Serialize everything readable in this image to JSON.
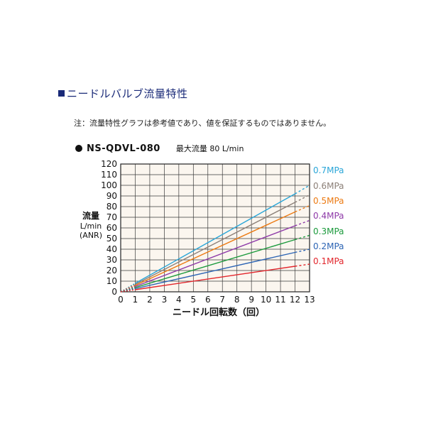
{
  "header": {
    "section_title": "ニードルバルブ流量特性",
    "note": "注：流量特性グラフは参考値であり、値を保証するものではありません。",
    "model": "NS-QDVL-080",
    "max_flow": "最大流量 80 L/min"
  },
  "chart_data": {
    "type": "line",
    "title": "",
    "xlabel": "ニードル回転数（回）",
    "ylabel_main": "流量",
    "ylabel_unit": "L/min",
    "ylabel_sub": "(ANR)",
    "xlim": [
      0,
      13
    ],
    "ylim": [
      0,
      120
    ],
    "x_ticks": [
      "0",
      "1",
      "2",
      "3",
      "4",
      "5",
      "6",
      "7",
      "8",
      "9",
      "10",
      "11",
      "12",
      "13"
    ],
    "y_ticks": [
      "0",
      "10",
      "20",
      "30",
      "40",
      "50",
      "60",
      "70",
      "80",
      "90",
      "100",
      "110",
      "120"
    ],
    "grid": true,
    "legend": "right",
    "series": [
      {
        "name": "0.7MPa",
        "color": "#2aa6d8",
        "x": [
          0,
          1,
          12
        ],
        "y": [
          0,
          8,
          92
        ],
        "ext_y": 100
      },
      {
        "name": "0.6MPa",
        "color": "#8c8078",
        "x": [
          0,
          1,
          12
        ],
        "y": [
          0,
          7,
          84
        ],
        "ext_y": 91
      },
      {
        "name": "0.5MPa",
        "color": "#ec7a12",
        "x": [
          0,
          1,
          12
        ],
        "y": [
          0,
          6,
          75
        ],
        "ext_y": 81
      },
      {
        "name": "0.4MPa",
        "color": "#8e3aa8",
        "x": [
          0,
          1,
          12
        ],
        "y": [
          0,
          5,
          62
        ],
        "ext_y": 67
      },
      {
        "name": "0.3MPa",
        "color": "#1b9a3c",
        "x": [
          0,
          1,
          12
        ],
        "y": [
          0,
          4,
          49
        ],
        "ext_y": 53
      },
      {
        "name": "0.2MPa",
        "color": "#2c64b4",
        "x": [
          0,
          1,
          12
        ],
        "y": [
          0,
          3,
          37
        ],
        "ext_y": 40
      },
      {
        "name": "0.1MPa",
        "color": "#e2262c",
        "x": [
          0,
          1,
          12
        ],
        "y": [
          0,
          2,
          24
        ],
        "ext_y": 26
      }
    ]
  }
}
